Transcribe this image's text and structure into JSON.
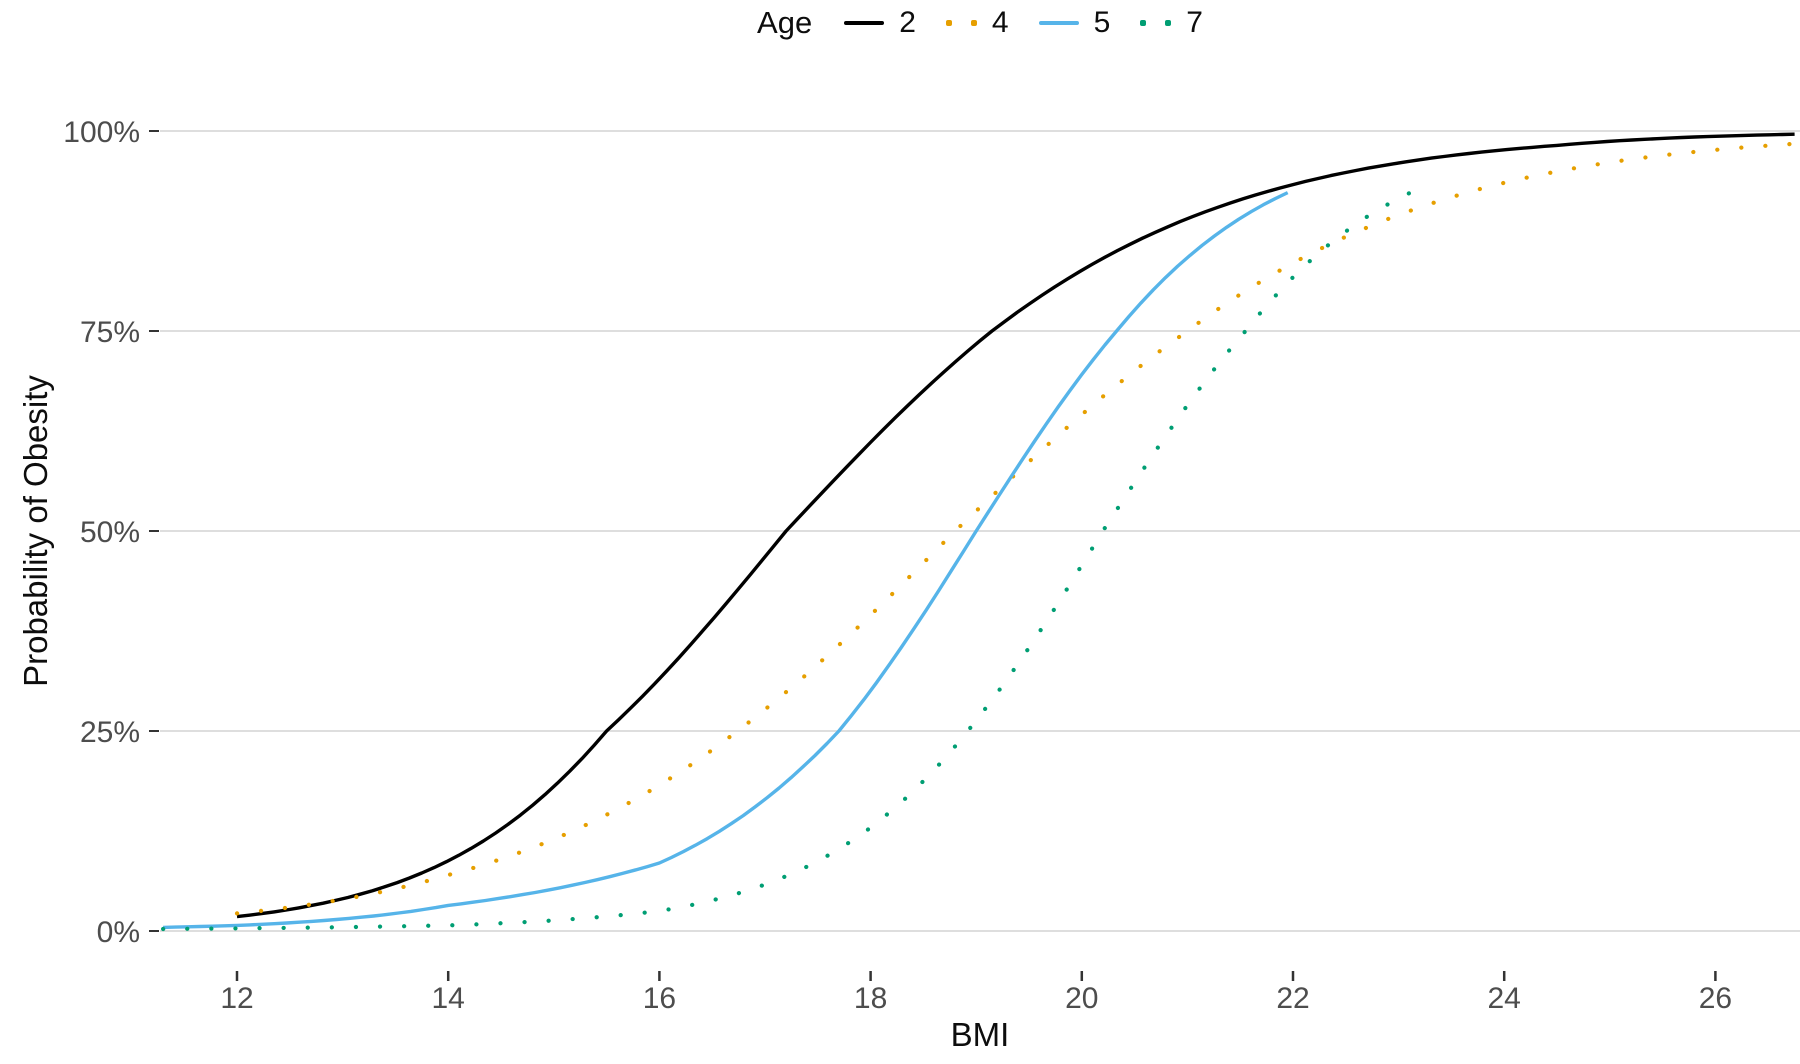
{
  "chart_data": {
    "type": "line",
    "title": "",
    "xlabel": "BMI",
    "ylabel": "Probability of Obesity",
    "x_ticks": [
      12,
      14,
      16,
      18,
      20,
      22,
      24,
      26
    ],
    "y_ticks": [
      {
        "percent": 0,
        "label": "0%"
      },
      {
        "percent": 25,
        "label": "25%"
      },
      {
        "percent": 50,
        "label": "50%"
      },
      {
        "percent": 75,
        "label": "75%"
      },
      {
        "percent": 100,
        "label": "100%"
      }
    ],
    "x_range": [
      11.3,
      26.8
    ],
    "y_range_percent": [
      0,
      100
    ],
    "grid": "horizontal-only",
    "background": "#ffffff",
    "gridline_color": "#dedede",
    "tick_text_color": "#4d4d4d",
    "legend": {
      "position": "top",
      "title": "Age",
      "entries": [
        {
          "label": "2",
          "color": "#000000",
          "linetype": "solid"
        },
        {
          "label": "4",
          "color": "#E69F00",
          "linetype": "dotted"
        },
        {
          "label": "5",
          "color": "#56B4E9",
          "linetype": "solid"
        },
        {
          "label": "7",
          "color": "#009E73",
          "linetype": "dotted"
        }
      ]
    },
    "series": [
      {
        "name": "Age 2",
        "color": "#000000",
        "linetype": "solid",
        "points_bmi_probpct": [
          [
            12,
            1.8
          ],
          [
            15.5,
            25
          ],
          [
            17.2,
            50
          ],
          [
            19.15,
            75
          ],
          [
            22,
            93.3
          ],
          [
            24.5,
            98.2
          ],
          [
            26.75,
            99.6
          ]
        ]
      },
      {
        "name": "Age 4",
        "color": "#E69F00",
        "linetype": "dotted",
        "points_bmi_probpct": [
          [
            12,
            2.2
          ],
          [
            14,
            7
          ],
          [
            16.74,
            25
          ],
          [
            18.8,
            50
          ],
          [
            21,
            75
          ],
          [
            23,
            89.5
          ],
          [
            26.75,
            98.4
          ]
        ]
      },
      {
        "name": "Age 5",
        "color": "#56B4E9",
        "linetype": "solid",
        "points_bmi_probpct": [
          [
            11.3,
            0.45
          ],
          [
            12,
            0.7
          ],
          [
            14,
            3.2
          ],
          [
            16,
            8.5
          ],
          [
            17.7,
            25
          ],
          [
            19,
            50
          ],
          [
            20.33,
            75
          ],
          [
            21.95,
            92.3
          ]
        ]
      },
      {
        "name": "Age 7",
        "color": "#009E73",
        "linetype": "dotted",
        "points_bmi_probpct": [
          [
            11.3,
            0.25
          ],
          [
            14,
            0.7
          ],
          [
            16,
            2.5
          ],
          [
            18.92,
            25
          ],
          [
            20.2,
            50
          ],
          [
            21.55,
            75
          ],
          [
            23.16,
            92.6
          ]
        ]
      }
    ]
  }
}
